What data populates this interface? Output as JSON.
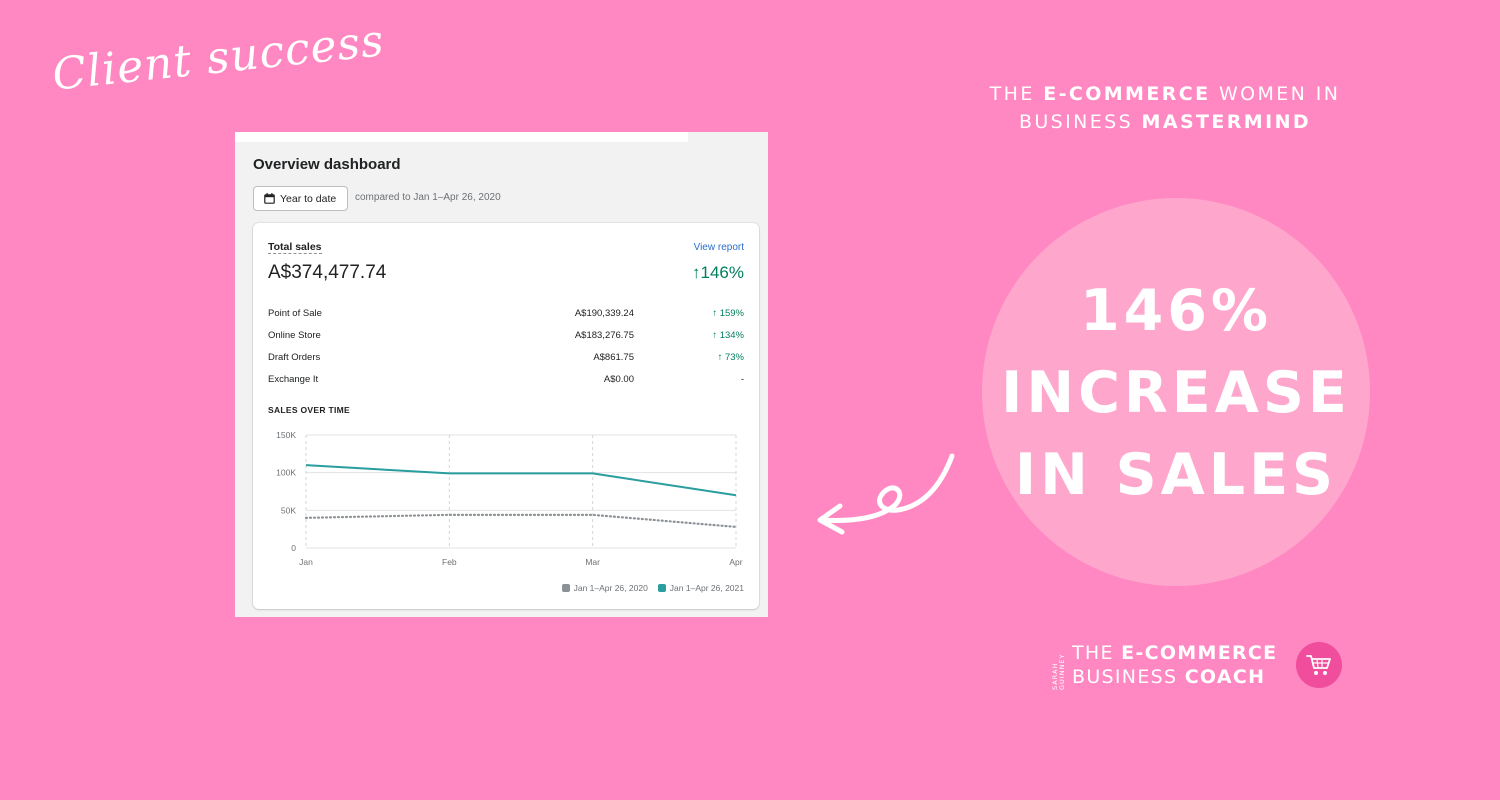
{
  "script_heading": "Client success",
  "mastermind": {
    "line1_pre": "THE ",
    "line1_bold": "E-COMMERCE",
    "line1_post": " WOMEN IN",
    "line2_pre": "BUSINESS ",
    "line2_bold": "MASTERMIND"
  },
  "headline": {
    "line1": "146%",
    "line2": "INCREASE",
    "line3": "IN SALES"
  },
  "dashboard": {
    "title": "Overview dashboard",
    "date_button": "Year to date",
    "compared": "compared to Jan 1–Apr 26, 2020",
    "total_label": "Total sales",
    "view_report": "View report",
    "total_value": "A$374,477.74",
    "total_change": "↑146%",
    "breakdown": [
      {
        "label": "Point of Sale",
        "value": "A$190,339.24",
        "change": "↑ 159%"
      },
      {
        "label": "Online Store",
        "value": "A$183,276.75",
        "change": "↑ 134%"
      },
      {
        "label": "Draft Orders",
        "value": "A$861.75",
        "change": "↑ 73%"
      },
      {
        "label": "Exchange It",
        "value": "A$0.00",
        "change": "-"
      }
    ],
    "chart_title": "SALES OVER TIME"
  },
  "chart_data": {
    "type": "line",
    "title": "SALES OVER TIME",
    "categories": [
      "Jan",
      "Feb",
      "Mar",
      "Apr"
    ],
    "y_ticks": [
      "150K",
      "100K",
      "50K",
      "0"
    ],
    "ylim": [
      0,
      150000
    ],
    "grid": true,
    "legend_position": "bottom-right",
    "series": [
      {
        "name": "Jan 1–Apr 26, 2020",
        "color": "#8c9196",
        "style": "dotted",
        "values": [
          40000,
          44000,
          44000,
          28000
        ]
      },
      {
        "name": "Jan 1–Apr 26, 2021",
        "color": "#2a9d9f",
        "style": "solid",
        "values": [
          110000,
          99000,
          99000,
          70000
        ]
      }
    ]
  },
  "logo": {
    "vertical": "SARAH GUINNEY",
    "line1_pre": "THE ",
    "line1_bold": "E-COMMERCE",
    "line2_pre": "BUSINESS ",
    "line2_bold": "COACH"
  },
  "colors": {
    "background": "#ff88c2",
    "circle": "#ffa6cd",
    "logo_badge": "#f04d9c",
    "teal": "#2a9d9f",
    "positive": "#007f5f"
  }
}
